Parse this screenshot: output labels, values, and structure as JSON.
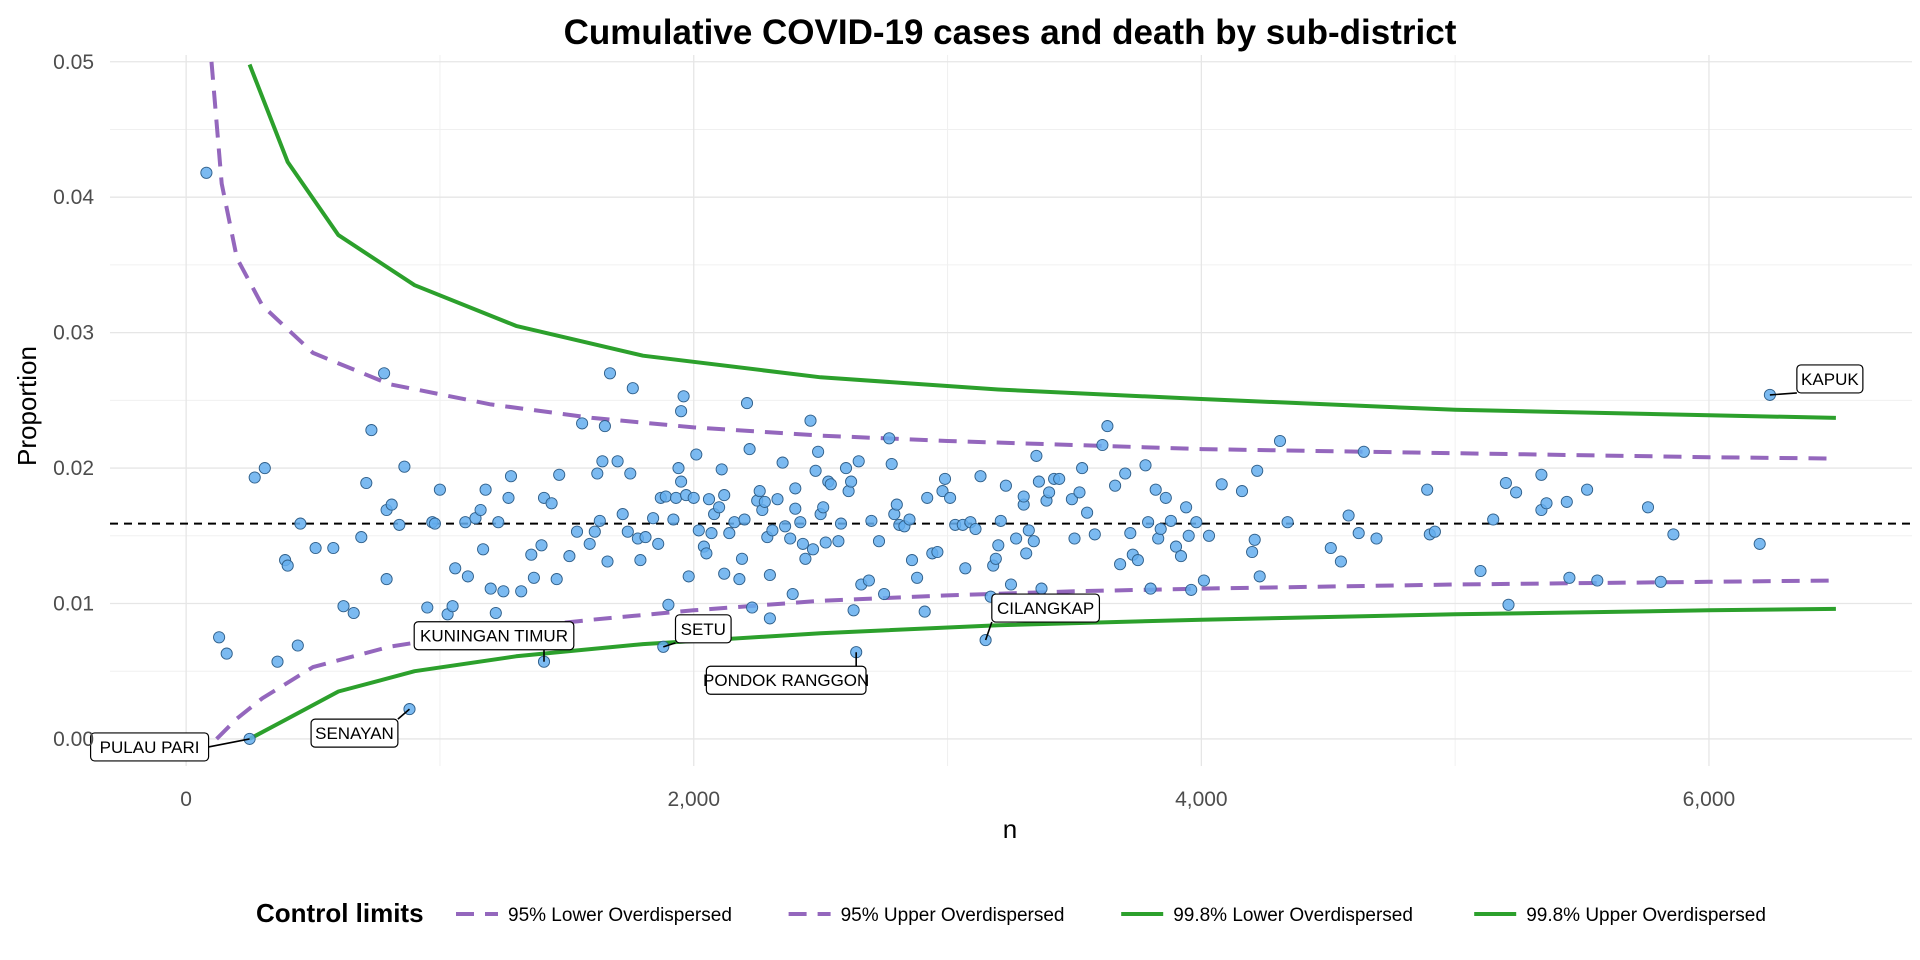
{
  "chart_data": {
    "type": "scatter",
    "title": "Cumulative COVID-19 cases and death by sub-district",
    "xlabel": "n",
    "ylabel": "Proportion",
    "xlim": [
      -300,
      6800
    ],
    "ylim": [
      -0.002,
      0.0505
    ],
    "x_ticks": [
      0,
      2000,
      4000,
      6000
    ],
    "x_tick_labels": [
      "0",
      "2,000",
      "4,000",
      "6,000"
    ],
    "y_ticks": [
      0,
      0.01,
      0.02,
      0.03,
      0.04,
      0.05
    ],
    "y_tick_labels": [
      "0.00",
      "0.01",
      "0.02",
      "0.03",
      "0.04",
      "0.05"
    ],
    "grid": true,
    "mean_line": 0.0159,
    "legend": {
      "title": "Control limits",
      "position": "bottom",
      "entries": [
        {
          "label": "95% Lower Overdispersed",
          "style": "dashed",
          "color": "#9467BD"
        },
        {
          "label": "95% Upper Overdispersed",
          "style": "dashed",
          "color": "#9467BD"
        },
        {
          "label": "99.8% Lower Overdispersed",
          "style": "solid",
          "color": "#2CA02C"
        },
        {
          "label": "99.8% Upper Overdispersed",
          "style": "solid",
          "color": "#2CA02C"
        }
      ]
    },
    "control_limits": [
      {
        "name": "95% Lower Overdispersed",
        "color": "#9467BD",
        "dashed": true,
        "points": [
          [
            120,
            0
          ],
          [
            200,
            0.0015
          ],
          [
            300,
            0.003
          ],
          [
            500,
            0.0053
          ],
          [
            800,
            0.0068
          ],
          [
            1200,
            0.008
          ],
          [
            1600,
            0.0088
          ],
          [
            2000,
            0.0095
          ],
          [
            2500,
            0.0102
          ],
          [
            3000,
            0.0106
          ],
          [
            3500,
            0.0109
          ],
          [
            4000,
            0.0111
          ],
          [
            5000,
            0.0114
          ],
          [
            6000,
            0.0116
          ],
          [
            6500,
            0.0117
          ]
        ]
      },
      {
        "name": "95% Upper Overdispersed",
        "color": "#9467BD",
        "dashed": true,
        "points": [
          [
            100,
            0.05
          ],
          [
            140,
            0.041
          ],
          [
            200,
            0.0355
          ],
          [
            300,
            0.032
          ],
          [
            500,
            0.0285
          ],
          [
            800,
            0.0262
          ],
          [
            1200,
            0.0247
          ],
          [
            1600,
            0.0237
          ],
          [
            2000,
            0.023
          ],
          [
            2500,
            0.0224
          ],
          [
            3000,
            0.022
          ],
          [
            3500,
            0.0217
          ],
          [
            4000,
            0.0214
          ],
          [
            5000,
            0.0211
          ],
          [
            6000,
            0.0208
          ],
          [
            6500,
            0.0207
          ]
        ]
      },
      {
        "name": "99.8% Lower Overdispersed",
        "color": "#2CA02C",
        "dashed": false,
        "points": [
          [
            250,
            0
          ],
          [
            400,
            0.0015
          ],
          [
            600,
            0.0035
          ],
          [
            900,
            0.005
          ],
          [
            1300,
            0.0061
          ],
          [
            1800,
            0.007
          ],
          [
            2500,
            0.0078
          ],
          [
            3200,
            0.0084
          ],
          [
            4000,
            0.0088
          ],
          [
            5000,
            0.0092
          ],
          [
            6000,
            0.0095
          ],
          [
            6500,
            0.0096
          ]
        ]
      },
      {
        "name": "99.8% Upper Overdispersed",
        "color": "#2CA02C",
        "dashed": false,
        "points": [
          [
            250,
            0.0498
          ],
          [
            400,
            0.0426
          ],
          [
            600,
            0.0372
          ],
          [
            900,
            0.0335
          ],
          [
            1300,
            0.0305
          ],
          [
            1800,
            0.0283
          ],
          [
            2500,
            0.0267
          ],
          [
            3200,
            0.0258
          ],
          [
            4000,
            0.0251
          ],
          [
            5000,
            0.0243
          ],
          [
            6000,
            0.0239
          ],
          [
            6500,
            0.0237
          ]
        ]
      }
    ],
    "annotations": [
      {
        "label": "PULAU PARI",
        "x": 250,
        "y": 0.0,
        "dx": -100,
        "dy": 8
      },
      {
        "label": "SENAYAN",
        "x": 880,
        "y": 0.0022,
        "dx": -55,
        "dy": 24
      },
      {
        "label": "KUNINGAN TIMUR",
        "x": 1410,
        "y": 0.0057,
        "dx": -50,
        "dy": -26
      },
      {
        "label": "SETU",
        "x": 1880,
        "y": 0.0068,
        "dx": 40,
        "dy": -18
      },
      {
        "label": "PONDOK RANGGON",
        "x": 2640,
        "y": 0.0064,
        "dx": -70,
        "dy": 28
      },
      {
        "label": "CILANGKAP",
        "x": 3150,
        "y": 0.0073,
        "dx": 60,
        "dy": -32
      },
      {
        "label": "KAPUK",
        "x": 6240,
        "y": 0.0254,
        "dx": 60,
        "dy": -16
      }
    ],
    "points": [
      [
        80,
        0.0418
      ],
      [
        130,
        0.0075
      ],
      [
        160,
        0.0063
      ],
      [
        250,
        0.0
      ],
      [
        270,
        0.0193
      ],
      [
        310,
        0.02
      ],
      [
        360,
        0.0057
      ],
      [
        390,
        0.0132
      ],
      [
        400,
        0.0128
      ],
      [
        440,
        0.0069
      ],
      [
        450,
        0.0159
      ],
      [
        510,
        0.0141
      ],
      [
        580,
        0.0141
      ],
      [
        620,
        0.0098
      ],
      [
        660,
        0.0093
      ],
      [
        690,
        0.0149
      ],
      [
        710,
        0.0189
      ],
      [
        730,
        0.0228
      ],
      [
        780,
        0.027
      ],
      [
        790,
        0.0169
      ],
      [
        790,
        0.0118
      ],
      [
        810,
        0.0173
      ],
      [
        840,
        0.0158
      ],
      [
        860,
        0.0201
      ],
      [
        880,
        0.0022
      ],
      [
        950,
        0.0097
      ],
      [
        970,
        0.016
      ],
      [
        980,
        0.0159
      ],
      [
        1000,
        0.0184
      ],
      [
        1030,
        0.0092
      ],
      [
        1050,
        0.0098
      ],
      [
        1060,
        0.0126
      ],
      [
        1100,
        0.016
      ],
      [
        1110,
        0.012
      ],
      [
        1140,
        0.0163
      ],
      [
        1160,
        0.0169
      ],
      [
        1170,
        0.014
      ],
      [
        1180,
        0.0184
      ],
      [
        1200,
        0.0111
      ],
      [
        1220,
        0.0093
      ],
      [
        1230,
        0.016
      ],
      [
        1250,
        0.0109
      ],
      [
        1270,
        0.0178
      ],
      [
        1280,
        0.0194
      ],
      [
        1320,
        0.0109
      ],
      [
        1360,
        0.0136
      ],
      [
        1370,
        0.0119
      ],
      [
        1400,
        0.0143
      ],
      [
        1410,
        0.0057
      ],
      [
        1410,
        0.0178
      ],
      [
        1440,
        0.0174
      ],
      [
        1460,
        0.0118
      ],
      [
        1470,
        0.0195
      ],
      [
        1510,
        0.0135
      ],
      [
        1540,
        0.0153
      ],
      [
        1560,
        0.0233
      ],
      [
        1590,
        0.0144
      ],
      [
        1610,
        0.0153
      ],
      [
        1620,
        0.0196
      ],
      [
        1630,
        0.0161
      ],
      [
        1640,
        0.0205
      ],
      [
        1650,
        0.0231
      ],
      [
        1660,
        0.0131
      ],
      [
        1670,
        0.027
      ],
      [
        1700,
        0.0205
      ],
      [
        1720,
        0.0166
      ],
      [
        1740,
        0.0153
      ],
      [
        1750,
        0.0196
      ],
      [
        1760,
        0.0259
      ],
      [
        1780,
        0.0148
      ],
      [
        1790,
        0.0132
      ],
      [
        1810,
        0.0149
      ],
      [
        1840,
        0.0163
      ],
      [
        1860,
        0.0144
      ],
      [
        1870,
        0.0178
      ],
      [
        1880,
        0.0068
      ],
      [
        1890,
        0.0179
      ],
      [
        1900,
        0.0099
      ],
      [
        1920,
        0.0162
      ],
      [
        1930,
        0.0178
      ],
      [
        1940,
        0.02
      ],
      [
        1950,
        0.019
      ],
      [
        1950,
        0.0242
      ],
      [
        1960,
        0.0253
      ],
      [
        1970,
        0.018
      ],
      [
        1980,
        0.012
      ],
      [
        2000,
        0.0178
      ],
      [
        2010,
        0.021
      ],
      [
        2020,
        0.0154
      ],
      [
        2040,
        0.0142
      ],
      [
        2050,
        0.0137
      ],
      [
        2060,
        0.0177
      ],
      [
        2070,
        0.0152
      ],
      [
        2080,
        0.0166
      ],
      [
        2100,
        0.0171
      ],
      [
        2110,
        0.0199
      ],
      [
        2120,
        0.018
      ],
      [
        2120,
        0.0122
      ],
      [
        2140,
        0.0152
      ],
      [
        2160,
        0.016
      ],
      [
        2180,
        0.0118
      ],
      [
        2190,
        0.0133
      ],
      [
        2200,
        0.0162
      ],
      [
        2210,
        0.0248
      ],
      [
        2220,
        0.0214
      ],
      [
        2230,
        0.0097
      ],
      [
        2250,
        0.0176
      ],
      [
        2260,
        0.0183
      ],
      [
        2270,
        0.0169
      ],
      [
        2280,
        0.0175
      ],
      [
        2290,
        0.0149
      ],
      [
        2300,
        0.0089
      ],
      [
        2300,
        0.0121
      ],
      [
        2310,
        0.0154
      ],
      [
        2330,
        0.0177
      ],
      [
        2350,
        0.0204
      ],
      [
        2360,
        0.0157
      ],
      [
        2380,
        0.0148
      ],
      [
        2390,
        0.0107
      ],
      [
        2400,
        0.017
      ],
      [
        2400,
        0.0185
      ],
      [
        2420,
        0.016
      ],
      [
        2430,
        0.0144
      ],
      [
        2440,
        0.0133
      ],
      [
        2460,
        0.0235
      ],
      [
        2470,
        0.014
      ],
      [
        2480,
        0.0198
      ],
      [
        2490,
        0.0212
      ],
      [
        2500,
        0.0166
      ],
      [
        2510,
        0.0171
      ],
      [
        2520,
        0.0145
      ],
      [
        2530,
        0.019
      ],
      [
        2540,
        0.0188
      ],
      [
        2570,
        0.0146
      ],
      [
        2580,
        0.0159
      ],
      [
        2600,
        0.02
      ],
      [
        2610,
        0.0183
      ],
      [
        2620,
        0.019
      ],
      [
        2630,
        0.0095
      ],
      [
        2640,
        0.0064
      ],
      [
        2650,
        0.0205
      ],
      [
        2660,
        0.0114
      ],
      [
        2690,
        0.0117
      ],
      [
        2700,
        0.0161
      ],
      [
        2730,
        0.0146
      ],
      [
        2750,
        0.0107
      ],
      [
        2770,
        0.0222
      ],
      [
        2780,
        0.0203
      ],
      [
        2790,
        0.0166
      ],
      [
        2800,
        0.0173
      ],
      [
        2810,
        0.0158
      ],
      [
        2830,
        0.0157
      ],
      [
        2850,
        0.0162
      ],
      [
        2860,
        0.0132
      ],
      [
        2880,
        0.0119
      ],
      [
        2910,
        0.0094
      ],
      [
        2920,
        0.0178
      ],
      [
        2940,
        0.0137
      ],
      [
        2960,
        0.0138
      ],
      [
        2980,
        0.0183
      ],
      [
        2990,
        0.0192
      ],
      [
        3010,
        0.0178
      ],
      [
        3030,
        0.0158
      ],
      [
        3060,
        0.0158
      ],
      [
        3070,
        0.0126
      ],
      [
        3090,
        0.016
      ],
      [
        3110,
        0.0155
      ],
      [
        3130,
        0.0194
      ],
      [
        3150,
        0.0073
      ],
      [
        3170,
        0.0105
      ],
      [
        3180,
        0.0128
      ],
      [
        3190,
        0.0133
      ],
      [
        3200,
        0.0143
      ],
      [
        3210,
        0.0161
      ],
      [
        3230,
        0.0187
      ],
      [
        3250,
        0.0114
      ],
      [
        3270,
        0.0148
      ],
      [
        3300,
        0.0173
      ],
      [
        3300,
        0.0179
      ],
      [
        3310,
        0.0137
      ],
      [
        3320,
        0.0154
      ],
      [
        3340,
        0.0146
      ],
      [
        3350,
        0.0209
      ],
      [
        3360,
        0.019
      ],
      [
        3370,
        0.0111
      ],
      [
        3390,
        0.0176
      ],
      [
        3400,
        0.0182
      ],
      [
        3420,
        0.0192
      ],
      [
        3440,
        0.0192
      ],
      [
        3490,
        0.0177
      ],
      [
        3500,
        0.0148
      ],
      [
        3520,
        0.0182
      ],
      [
        3530,
        0.02
      ],
      [
        3550,
        0.0167
      ],
      [
        3580,
        0.0151
      ],
      [
        3610,
        0.0217
      ],
      [
        3630,
        0.0231
      ],
      [
        3660,
        0.0187
      ],
      [
        3680,
        0.0129
      ],
      [
        3700,
        0.0196
      ],
      [
        3720,
        0.0152
      ],
      [
        3730,
        0.0136
      ],
      [
        3750,
        0.0132
      ],
      [
        3780,
        0.0202
      ],
      [
        3790,
        0.016
      ],
      [
        3800,
        0.0111
      ],
      [
        3820,
        0.0184
      ],
      [
        3830,
        0.0148
      ],
      [
        3840,
        0.0155
      ],
      [
        3860,
        0.0178
      ],
      [
        3880,
        0.0161
      ],
      [
        3900,
        0.0142
      ],
      [
        3920,
        0.0135
      ],
      [
        3940,
        0.0171
      ],
      [
        3950,
        0.015
      ],
      [
        3960,
        0.011
      ],
      [
        3980,
        0.016
      ],
      [
        4010,
        0.0117
      ],
      [
        4030,
        0.015
      ],
      [
        4080,
        0.0188
      ],
      [
        4160,
        0.0183
      ],
      [
        4200,
        0.0138
      ],
      [
        4210,
        0.0147
      ],
      [
        4220,
        0.0198
      ],
      [
        4230,
        0.012
      ],
      [
        4310,
        0.022
      ],
      [
        4340,
        0.016
      ],
      [
        4510,
        0.0141
      ],
      [
        4550,
        0.0131
      ],
      [
        4580,
        0.0165
      ],
      [
        4620,
        0.0152
      ],
      [
        4640,
        0.0212
      ],
      [
        4690,
        0.0148
      ],
      [
        4890,
        0.0184
      ],
      [
        4900,
        0.0151
      ],
      [
        4920,
        0.0153
      ],
      [
        5100,
        0.0124
      ],
      [
        5150,
        0.0162
      ],
      [
        5200,
        0.0189
      ],
      [
        5210,
        0.0099
      ],
      [
        5240,
        0.0182
      ],
      [
        5340,
        0.0195
      ],
      [
        5340,
        0.0169
      ],
      [
        5360,
        0.0174
      ],
      [
        5440,
        0.0175
      ],
      [
        5450,
        0.0119
      ],
      [
        5520,
        0.0184
      ],
      [
        5560,
        0.0117
      ],
      [
        5760,
        0.0171
      ],
      [
        5810,
        0.0116
      ],
      [
        5860,
        0.0151
      ],
      [
        6200,
        0.0144
      ],
      [
        6240,
        0.0254
      ]
    ],
    "point_color": "#64AEEE"
  }
}
